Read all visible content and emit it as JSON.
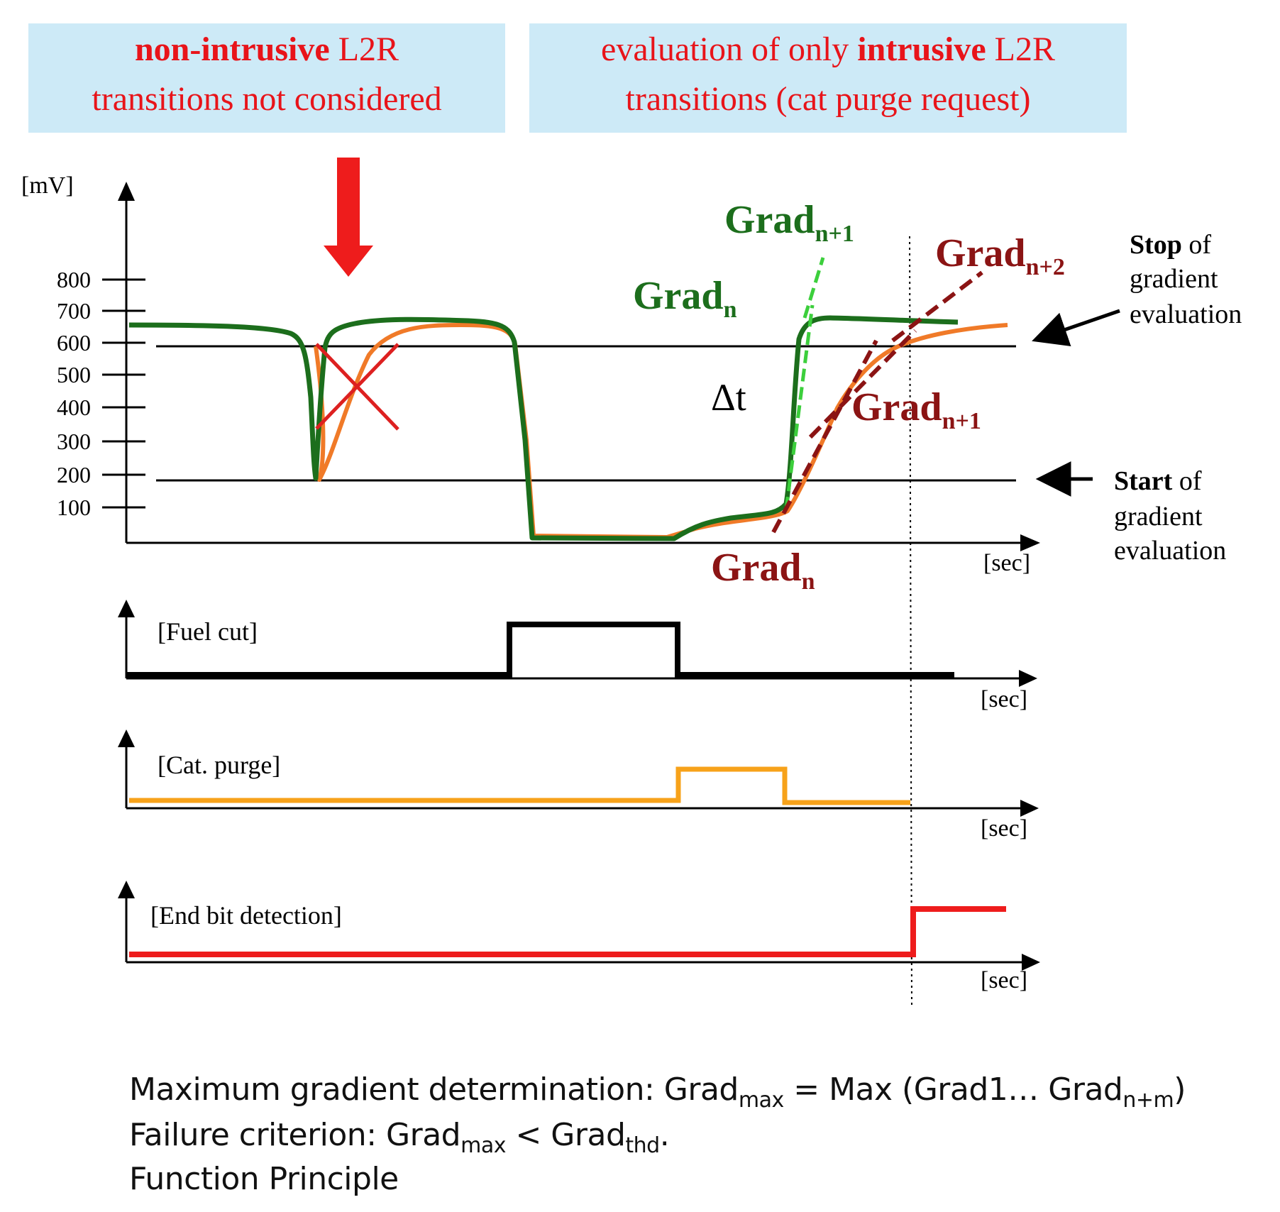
{
  "banners": {
    "left": {
      "line1_bold": "non-intrusive",
      "line1_rest": " L2R",
      "line2": "transitions not considered"
    },
    "right": {
      "line1_pre": "evaluation of only ",
      "line1_bold": "intrusive",
      "line1_rest": " L2R",
      "line2": "transitions (cat purge request)"
    }
  },
  "main_plot": {
    "y_unit": "[mV]",
    "x_unit": "[sec]",
    "y_ticks": [
      "800",
      "700",
      "600",
      "500",
      "400",
      "300",
      "200",
      "100"
    ],
    "threshold_upper": 600,
    "threshold_lower": 200,
    "delta_label": "Δt"
  },
  "gradient_labels": {
    "green_n": {
      "base": "Grad",
      "sub": "n"
    },
    "green_n1": {
      "base": "Grad",
      "sub": "n+1"
    },
    "red_n": {
      "base": "Grad",
      "sub": "n"
    },
    "red_n1": {
      "base": "Grad",
      "sub": "n+1"
    },
    "red_n2": {
      "base": "Grad",
      "sub": "n+2"
    }
  },
  "annotations": {
    "stop": {
      "bold": "Stop",
      "rest": " of",
      "line2": "gradient",
      "line3": "evaluation"
    },
    "start": {
      "bold": "Start",
      "rest": " of",
      "line2": "gradient",
      "line3": "evaluation"
    }
  },
  "signals": {
    "fuel_cut": {
      "label": "[Fuel cut]",
      "x_unit": "[sec]"
    },
    "cat_purge": {
      "label": "[Cat. purge]",
      "x_unit": "[sec]"
    },
    "end_bit": {
      "label": "[End bit detection]",
      "x_unit": "[sec]"
    }
  },
  "footer": {
    "line1_text": "Maximum gradient determination: Grad",
    "line1_sub1": "max",
    "line1_mid": " = Max (Grad1… Grad",
    "line1_sub2": "n+m",
    "line1_end": ")",
    "line2_text": "Failure criterion: Grad",
    "line2_sub1": "max",
    "line2_mid": " < Grad",
    "line2_sub2": "thd",
    "line2_end": ".",
    "line3_text": "Function Principle"
  },
  "colors": {
    "banner_bg": "#cdeaf7",
    "banner_red": "#e8141a",
    "dark_green": "#1c6e1c",
    "light_green": "#3ccf3c",
    "orange": "#f07a28",
    "dark_red": "#8b1414",
    "purge_orange": "#f7a21a",
    "end_red": "#ee1c1c"
  }
}
